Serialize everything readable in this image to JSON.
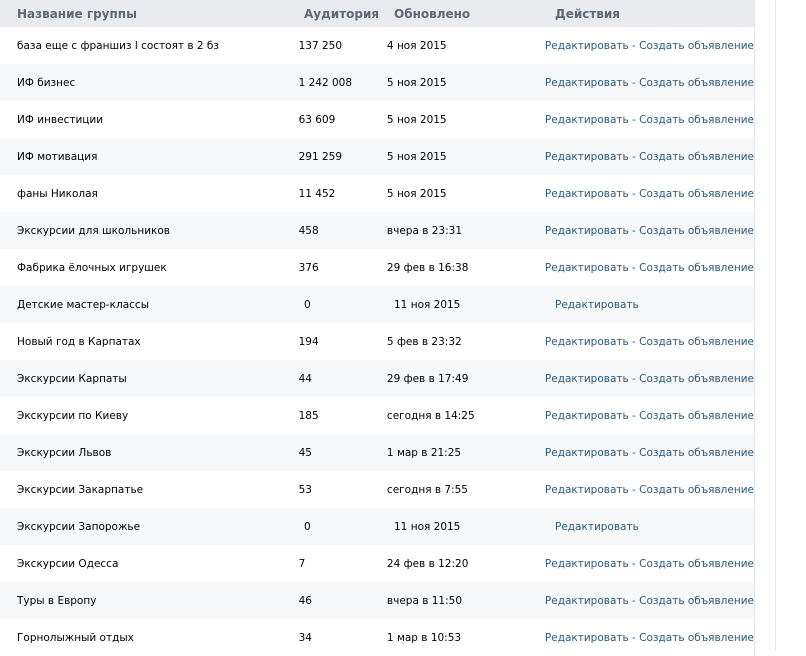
{
  "header": {
    "name": "Название группы",
    "audience": "Аудитория",
    "updated": "Обновлено",
    "actions": "Действия"
  },
  "actions": {
    "edit": "Редактировать",
    "separator": " - ",
    "create_ad": "Создать объявление"
  },
  "colors": {
    "link": "#2b587a",
    "header_bg": "#e9ebee"
  },
  "rows": [
    {
      "name": "база еще с франшиз l состоят в 2 бз",
      "audience": "137 250",
      "updated": "4 ноя 2015",
      "can_create_ad": true
    },
    {
      "name": "ИФ бизнес",
      "audience": "1 242 008",
      "updated": "5 ноя 2015",
      "can_create_ad": true
    },
    {
      "name": "ИФ инвестиции",
      "audience": "63 609",
      "updated": "5 ноя 2015",
      "can_create_ad": true
    },
    {
      "name": "ИФ мотивация",
      "audience": "291 259",
      "updated": "5 ноя 2015",
      "can_create_ad": true
    },
    {
      "name": "фаны Николая",
      "audience": "11 452",
      "updated": "5 ноя 2015",
      "can_create_ad": true
    },
    {
      "name": "Экскурсии для школьников",
      "audience": "458",
      "updated": "вчера в 23:31",
      "can_create_ad": true
    },
    {
      "name": "Фабрика ёлочных игрушек",
      "audience": "376",
      "updated": "29 фев в 16:38",
      "can_create_ad": true
    },
    {
      "name": "Детские мастер-классы",
      "audience": "0",
      "updated": "11 ноя 2015",
      "can_create_ad": false
    },
    {
      "name": "Новый год в Карпатах",
      "audience": "194",
      "updated": "5 фев в 23:32",
      "can_create_ad": true
    },
    {
      "name": "Экскурсии Карпаты",
      "audience": "44",
      "updated": "29 фев в 17:49",
      "can_create_ad": true
    },
    {
      "name": "Экскурсии по Киеву",
      "audience": "185",
      "updated": "сегодня в 14:25",
      "can_create_ad": true
    },
    {
      "name": "Экскурсии Львов",
      "audience": "45",
      "updated": "1 мар в 21:25",
      "can_create_ad": true
    },
    {
      "name": "Экскурсии Закарпатье",
      "audience": "53",
      "updated": "сегодня в 7:55",
      "can_create_ad": true
    },
    {
      "name": "Экскурсии Запорожье",
      "audience": "0",
      "updated": "11 ноя 2015",
      "can_create_ad": false
    },
    {
      "name": "Экскурсии Одесса",
      "audience": "7",
      "updated": "24 фев в 12:20",
      "can_create_ad": true
    },
    {
      "name": "Туры в Европу",
      "audience": "46",
      "updated": "вчера в 11:50",
      "can_create_ad": true
    },
    {
      "name": "Горнолыжный отдых",
      "audience": "34",
      "updated": "1 мар в 10:53",
      "can_create_ad": true
    }
  ]
}
